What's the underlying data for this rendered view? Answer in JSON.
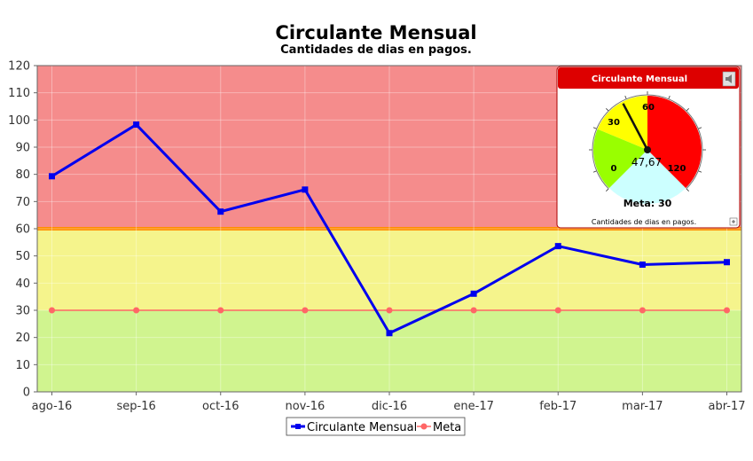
{
  "chart_data": {
    "type": "line",
    "title": "Circulante Mensual",
    "subtitle": "Cantidades de dias en pagos.",
    "categories": [
      "ago-16",
      "sep-16",
      "oct-16",
      "nov-16",
      "dic-16",
      "ene-17",
      "feb-17",
      "mar-17",
      "abr-17"
    ],
    "series": [
      {
        "name": "Circulante Mensual",
        "color": "#0000ee",
        "marker": "square",
        "values": [
          79.3,
          98.3,
          66.3,
          74.4,
          21.6,
          36.1,
          53.6,
          46.8,
          47.7
        ]
      },
      {
        "name": "Meta",
        "color": "#ff6666",
        "marker": "circle",
        "values": [
          30,
          30,
          30,
          30,
          30,
          30,
          30,
          30,
          30
        ]
      }
    ],
    "ylim": [
      0,
      120
    ],
    "yticks": [
      0,
      10,
      20,
      30,
      40,
      50,
      60,
      70,
      80,
      90,
      100,
      110,
      120
    ],
    "bands": [
      {
        "from": 0,
        "to": 30,
        "color": "#d0f48f"
      },
      {
        "from": 30,
        "to": 60,
        "color": "#f5f48c"
      },
      {
        "from": 60,
        "to": 120,
        "color": "#f58c8c"
      }
    ],
    "grid": true,
    "legend": "bottom-center"
  },
  "gauge": {
    "title": "Circulante Mensual",
    "value": 47.67,
    "value_label": "47,67",
    "min": 0,
    "max": 120,
    "labels": [
      "0",
      "30",
      "60",
      "120"
    ],
    "meta_label": "Meta: 30",
    "subtitle": "Cantidades de dias en pagos.",
    "zones": [
      {
        "from": 0,
        "to": 30,
        "color": "#99ff00"
      },
      {
        "from": 30,
        "to": 60,
        "color": "#ffff00"
      },
      {
        "from": 60,
        "to": 120,
        "color": "#ff0000"
      }
    ],
    "header_color": "#dd0000"
  }
}
